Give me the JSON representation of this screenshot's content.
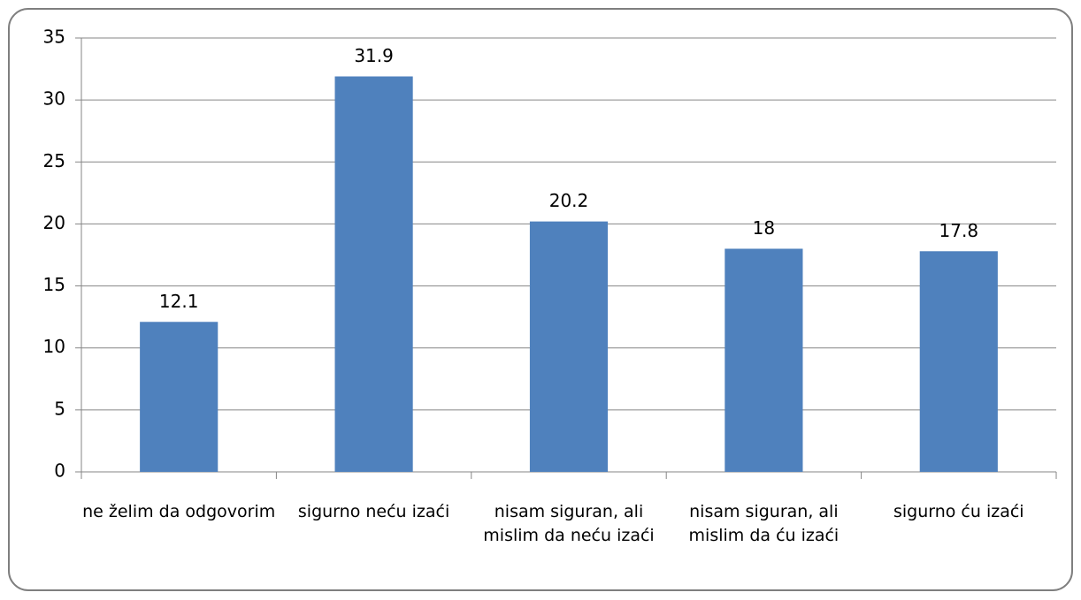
{
  "chart_data": {
    "type": "bar",
    "categories": [
      "ne želim da odgovorim",
      "sigurno neću izaći",
      "nisam siguran, ali mislim da neću izaći",
      "nisam siguran, ali mislim da ću izaći",
      "sigurno ću izaći"
    ],
    "values": [
      12.1,
      31.9,
      20.2,
      18,
      17.8
    ],
    "color": "#4f81bd",
    "ylim": [
      0,
      35
    ],
    "yticks": [
      0,
      5,
      10,
      15,
      20,
      25,
      30,
      35
    ],
    "grid": true
  }
}
